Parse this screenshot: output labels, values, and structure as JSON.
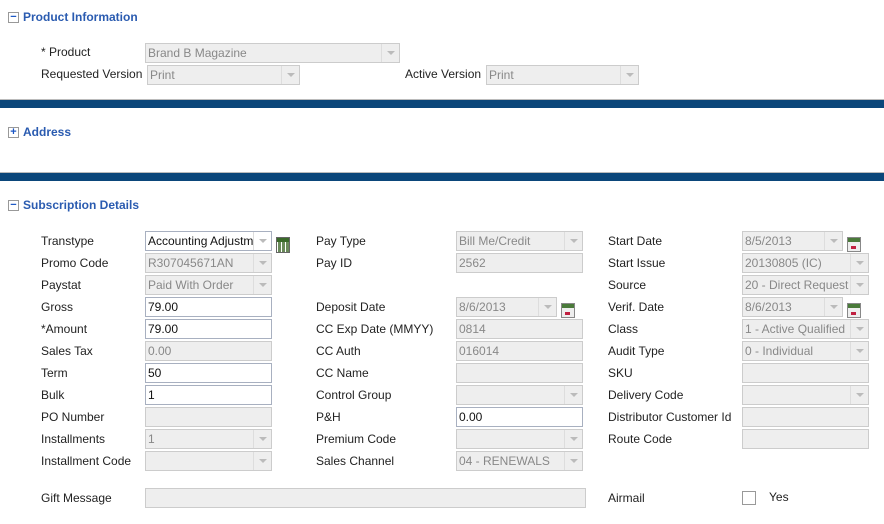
{
  "product_section": {
    "title": "Product Information",
    "toggle": "−",
    "product_label": "* Product",
    "product_value": "Brand B Magazine",
    "requested_label": "Requested Version",
    "requested_value": "Print",
    "active_label": "Active Version",
    "active_value": "Print"
  },
  "address_section": {
    "title": "Address",
    "toggle": "+"
  },
  "subscription_section": {
    "title": "Subscription Details",
    "toggle": "−",
    "columns": [
      [
        {
          "label": "Transtype",
          "value": "Accounting Adjustm",
          "kind": "select",
          "editable": true,
          "icon": "calculator-icon"
        },
        {
          "label": "Promo Code",
          "value": "R307045671AN",
          "kind": "select"
        },
        {
          "label": "Paystat",
          "value": "Paid With Order",
          "kind": "select"
        },
        {
          "label": "Gross",
          "value": "79.00",
          "kind": "text",
          "editable": true
        },
        {
          "label": "*Amount",
          "value": "79.00",
          "kind": "text",
          "editable": true
        },
        {
          "label": "Sales Tax",
          "value": "0.00",
          "kind": "text"
        },
        {
          "label": "Term",
          "value": "50",
          "kind": "text",
          "editable": true
        },
        {
          "label": "Bulk",
          "value": "1",
          "kind": "text",
          "editable": true
        },
        {
          "label": "PO Number",
          "value": "",
          "kind": "text"
        },
        {
          "label": "Installments",
          "value": "1",
          "kind": "select"
        },
        {
          "label": "Installment Code",
          "value": "",
          "kind": "select"
        }
      ],
      [
        {
          "label": "Pay Type",
          "value": "Bill Me/Credit",
          "kind": "select"
        },
        {
          "label": "Pay ID",
          "value": "2562",
          "kind": "text"
        },
        null,
        {
          "label": "Deposit Date",
          "value": "8/6/2013",
          "kind": "select",
          "icon": "calendar-icon"
        },
        {
          "label": "CC Exp Date (MMYY)",
          "value": "0814",
          "kind": "text"
        },
        {
          "label": "CC Auth",
          "value": "016014",
          "kind": "text"
        },
        {
          "label": "CC Name",
          "value": "",
          "kind": "text"
        },
        {
          "label": "Control Group",
          "value": "",
          "kind": "select"
        },
        {
          "label": "P&H",
          "value": "0.00",
          "kind": "text",
          "editable": true
        },
        {
          "label": "Premium Code",
          "value": "",
          "kind": "select"
        },
        {
          "label": "Sales Channel",
          "value": "04 - RENEWALS",
          "kind": "select"
        }
      ],
      [
        {
          "label": "Start Date",
          "value": "8/5/2013",
          "kind": "select",
          "icon": "calendar-icon"
        },
        {
          "label": "Start Issue",
          "value": "20130805 (IC)",
          "kind": "select"
        },
        {
          "label": "Source",
          "value": "20 - Direct Request",
          "kind": "select"
        },
        {
          "label": "Verif. Date",
          "value": "8/6/2013",
          "kind": "select",
          "icon": "calendar-icon"
        },
        {
          "label": "Class",
          "value": "1 - Active Qualified",
          "kind": "select"
        },
        {
          "label": "Audit Type",
          "value": "0 - Individual",
          "kind": "select"
        },
        {
          "label": "SKU",
          "value": "",
          "kind": "text"
        },
        {
          "label": "Delivery Code",
          "value": "",
          "kind": "select"
        },
        {
          "label": "Distributor Customer Id",
          "value": "",
          "kind": "text"
        },
        {
          "label": "Route Code",
          "value": "",
          "kind": "text"
        }
      ]
    ],
    "gift_label": "Gift Message",
    "gift_value": "",
    "airmail_label": "Airmail",
    "airmail_option": "Yes",
    "airmail_checked": false
  }
}
